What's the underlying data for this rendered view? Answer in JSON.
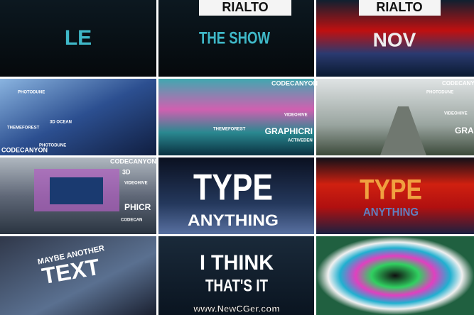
{
  "tiles": [
    {
      "texts": [
        "LE"
      ]
    },
    {
      "texts": [
        "RIALTO",
        "THE SHOW"
      ]
    },
    {
      "texts": [
        "RIALTO",
        "NOV"
      ]
    },
    {
      "texts": [
        "CODECANYON",
        "PHOTODUNE",
        "3D OCEAN",
        "THEMEFOREST",
        "PHOTODUNE"
      ]
    },
    {
      "texts": [
        "CODECANYON",
        "VIDEOHIVE",
        "GRAPHICRI",
        "THEMEFOREST",
        "ACTIVEDEN"
      ]
    },
    {
      "texts": [
        "CODECANYON",
        "PHOTODUNE",
        "VIDEOHIVE",
        "GRAPHI"
      ]
    },
    {
      "texts": [
        "CODECANYON",
        "VIDEOHIVE",
        "3D",
        "PHICR",
        "CODECAN"
      ]
    },
    {
      "texts": [
        "TYPE",
        "ANYTHING"
      ]
    },
    {
      "texts": [
        "TYPE",
        "ANYTHING"
      ]
    },
    {
      "texts": [
        "MAYBE ANOTHER",
        "TEXT"
      ]
    },
    {
      "texts": [
        "I THINK",
        "THAT'S IT"
      ]
    },
    {
      "texts": []
    }
  ],
  "watermark": "www.NewCGer.com"
}
